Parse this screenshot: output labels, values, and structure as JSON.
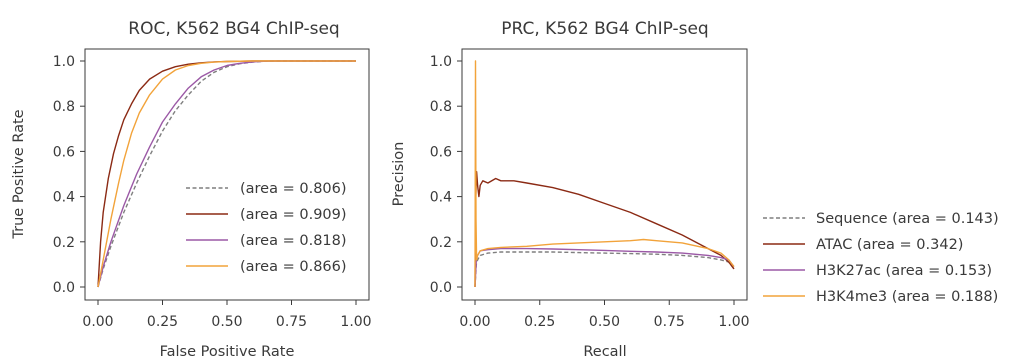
{
  "chart_data": [
    {
      "type": "line",
      "title": "ROC, K562 BG4 ChIP-seq",
      "xlabel": "False Positive Rate",
      "ylabel": "True Positive Rate",
      "xlim": [
        0,
        1
      ],
      "ylim": [
        0,
        1
      ],
      "xticks": [
        "0.00",
        "0.25",
        "0.50",
        "0.75",
        "1.00"
      ],
      "yticks": [
        "0.0",
        "0.2",
        "0.4",
        "0.6",
        "0.8",
        "1.0"
      ],
      "grid": false,
      "legend_position": "lower-right",
      "series": [
        {
          "label": "(area = 0.806)",
          "color": "#7f7f7f",
          "dashed": true,
          "x": [
            0,
            0.02,
            0.05,
            0.1,
            0.15,
            0.2,
            0.25,
            0.3,
            0.35,
            0.4,
            0.45,
            0.5,
            0.55,
            0.6,
            0.65,
            0.7,
            1.0
          ],
          "y": [
            0,
            0.08,
            0.18,
            0.33,
            0.46,
            0.58,
            0.69,
            0.78,
            0.85,
            0.91,
            0.95,
            0.975,
            0.988,
            0.995,
            0.999,
            1.0,
            1.0
          ]
        },
        {
          "label": "(area = 0.909)",
          "color": "#8b2a14",
          "dashed": false,
          "x": [
            0,
            0.01,
            0.02,
            0.04,
            0.06,
            0.08,
            0.1,
            0.13,
            0.16,
            0.2,
            0.25,
            0.3,
            0.35,
            0.4,
            0.45,
            0.5,
            0.6,
            1.0
          ],
          "y": [
            0,
            0.2,
            0.33,
            0.48,
            0.59,
            0.67,
            0.74,
            0.81,
            0.87,
            0.92,
            0.955,
            0.975,
            0.986,
            0.992,
            0.996,
            0.998,
            1.0,
            1.0
          ]
        },
        {
          "label": "(area = 0.818)",
          "color": "#9b59a6",
          "dashed": false,
          "x": [
            0,
            0.02,
            0.05,
            0.1,
            0.15,
            0.2,
            0.25,
            0.3,
            0.35,
            0.4,
            0.45,
            0.5,
            0.55,
            0.6,
            0.65,
            0.7,
            1.0
          ],
          "y": [
            0,
            0.09,
            0.2,
            0.36,
            0.5,
            0.62,
            0.73,
            0.81,
            0.88,
            0.93,
            0.96,
            0.98,
            0.99,
            0.996,
            0.999,
            1.0,
            1.0
          ]
        },
        {
          "label": "(area = 0.866)",
          "color": "#f2a33a",
          "dashed": false,
          "x": [
            0,
            0.02,
            0.05,
            0.08,
            0.1,
            0.13,
            0.16,
            0.2,
            0.25,
            0.3,
            0.35,
            0.4,
            0.45,
            0.5,
            0.6,
            1.0
          ],
          "y": [
            0,
            0.12,
            0.3,
            0.46,
            0.56,
            0.68,
            0.77,
            0.85,
            0.92,
            0.96,
            0.98,
            0.99,
            0.995,
            0.998,
            1.0,
            1.0
          ]
        }
      ]
    },
    {
      "type": "line",
      "title": "PRC, K562 BG4 ChIP-seq",
      "xlabel": "Recall",
      "ylabel": "Precision",
      "xlim": [
        0,
        1
      ],
      "ylim": [
        0,
        1
      ],
      "xticks": [
        "0.00",
        "0.25",
        "0.50",
        "0.75",
        "1.00"
      ],
      "yticks": [
        "0.0",
        "0.2",
        "0.4",
        "0.6",
        "0.8",
        "1.0"
      ],
      "grid": false,
      "legend_position": "outside-right",
      "series": [
        {
          "label": "Sequence (area = 0.143)",
          "color": "#7f7f7f",
          "dashed": true,
          "x": [
            0,
            0.005,
            0.01,
            0.02,
            0.05,
            0.1,
            0.2,
            0.3,
            0.4,
            0.5,
            0.6,
            0.7,
            0.8,
            0.9,
            0.95,
            0.98,
            1.0
          ],
          "y": [
            0,
            0.1,
            0.12,
            0.14,
            0.15,
            0.155,
            0.155,
            0.155,
            0.152,
            0.15,
            0.148,
            0.145,
            0.14,
            0.13,
            0.12,
            0.11,
            0.08
          ]
        },
        {
          "label": "ATAC (area = 0.342)",
          "color": "#8b2a14",
          "dashed": false,
          "x": [
            0,
            0.003,
            0.006,
            0.01,
            0.015,
            0.02,
            0.03,
            0.05,
            0.08,
            0.1,
            0.15,
            0.2,
            0.3,
            0.4,
            0.5,
            0.6,
            0.7,
            0.8,
            0.9,
            0.95,
            0.98,
            1.0
          ],
          "y": [
            0,
            0.4,
            0.51,
            0.45,
            0.4,
            0.45,
            0.47,
            0.46,
            0.48,
            0.47,
            0.47,
            0.46,
            0.44,
            0.41,
            0.37,
            0.33,
            0.28,
            0.23,
            0.17,
            0.14,
            0.11,
            0.08
          ]
        },
        {
          "label": "H3K27ac (area = 0.153)",
          "color": "#9b59a6",
          "dashed": false,
          "x": [
            0,
            0.005,
            0.01,
            0.02,
            0.05,
            0.1,
            0.2,
            0.3,
            0.4,
            0.5,
            0.6,
            0.7,
            0.8,
            0.9,
            0.95,
            0.98,
            1.0
          ],
          "y": [
            0,
            0.12,
            0.14,
            0.16,
            0.165,
            0.17,
            0.17,
            0.168,
            0.165,
            0.162,
            0.158,
            0.155,
            0.15,
            0.14,
            0.13,
            0.12,
            0.09
          ]
        },
        {
          "label": "H3K4me3 (area = 0.188)",
          "color": "#f2a33a",
          "dashed": false,
          "x": [
            0,
            0.002,
            0.004,
            0.006,
            0.01,
            0.02,
            0.05,
            0.1,
            0.2,
            0.3,
            0.4,
            0.5,
            0.6,
            0.65,
            0.7,
            0.8,
            0.9,
            0.95,
            0.98,
            1.0
          ],
          "y": [
            0,
            1.0,
            0.3,
            0.12,
            0.14,
            0.16,
            0.17,
            0.175,
            0.18,
            0.19,
            0.195,
            0.2,
            0.205,
            0.21,
            0.205,
            0.195,
            0.17,
            0.15,
            0.12,
            0.09
          ]
        }
      ]
    }
  ]
}
